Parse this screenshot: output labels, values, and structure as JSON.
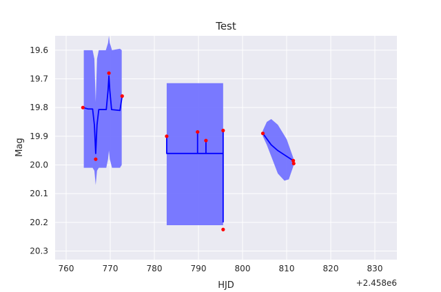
{
  "chart_data": {
    "type": "line",
    "title": "Test",
    "xlabel": "HJD",
    "ylabel": "Mag",
    "x_offset_label": "+2.458e6",
    "xlim": [
      757.5,
      835
    ],
    "ylim": [
      20.33,
      19.55
    ],
    "y_inverted": true,
    "grid": true,
    "xticks": [
      760,
      770,
      780,
      790,
      800,
      810,
      820,
      830
    ],
    "yticks": [
      19.6,
      19.7,
      19.8,
      19.9,
      20.0,
      20.1,
      20.2,
      20.3
    ],
    "ytick_labels": [
      "19.6",
      "19.7",
      "19.8",
      "19.9",
      "20.0",
      "20.1",
      "20.2",
      "20.3"
    ],
    "colors": {
      "background": "#eaeaf2",
      "grid": "#ffffff",
      "model_line": "#0000ff",
      "band": "#7373ff",
      "observations": "#ff0000",
      "text": "#262626"
    },
    "observations": [
      {
        "x": 763.8,
        "y": 19.8
      },
      {
        "x": 766.7,
        "y": 19.98
      },
      {
        "x": 769.7,
        "y": 19.68
      },
      {
        "x": 772.7,
        "y": 19.76
      },
      {
        "x": 782.8,
        "y": 19.9
      },
      {
        "x": 789.8,
        "y": 19.885
      },
      {
        "x": 791.7,
        "y": 19.915
      },
      {
        "x": 795.6,
        "y": 19.88
      },
      {
        "x": 795.6,
        "y": 20.225
      },
      {
        "x": 804.6,
        "y": 19.89
      },
      {
        "x": 811.5,
        "y": 19.985
      },
      {
        "x": 811.6,
        "y": 19.995
      }
    ],
    "segments": [
      {
        "line": [
          [
            763.8,
            19.8
          ],
          [
            765.0,
            19.805
          ],
          [
            766.0,
            19.805
          ],
          [
            766.4,
            19.86
          ],
          [
            766.7,
            19.96
          ],
          [
            767.0,
            19.86
          ],
          [
            767.4,
            19.807
          ],
          [
            769.1,
            19.807
          ],
          [
            769.5,
            19.74
          ],
          [
            769.7,
            19.69
          ],
          [
            769.9,
            19.74
          ],
          [
            770.3,
            19.807
          ],
          [
            772.2,
            19.81
          ],
          [
            772.7,
            19.76
          ]
        ],
        "band_upper": [
          [
            764.0,
            19.6
          ],
          [
            766.0,
            19.6
          ],
          [
            766.4,
            19.63
          ],
          [
            766.7,
            19.78
          ],
          [
            767.0,
            19.63
          ],
          [
            767.4,
            19.6
          ],
          [
            769.0,
            19.6
          ],
          [
            769.5,
            19.575
          ],
          [
            769.7,
            19.55
          ],
          [
            769.9,
            19.575
          ],
          [
            770.4,
            19.6
          ],
          [
            772.2,
            19.595
          ],
          [
            772.6,
            19.6
          ]
        ],
        "band_lower": [
          [
            764.0,
            20.01
          ],
          [
            766.0,
            20.01
          ],
          [
            766.4,
            20.02
          ],
          [
            766.7,
            20.07
          ],
          [
            767.0,
            20.02
          ],
          [
            767.4,
            20.01
          ],
          [
            769.1,
            20.01
          ],
          [
            769.5,
            19.98
          ],
          [
            769.7,
            19.95
          ],
          [
            769.9,
            19.98
          ],
          [
            770.4,
            20.01
          ],
          [
            772.2,
            20.01
          ],
          [
            772.6,
            20.0
          ]
        ]
      },
      {
        "line": [
          [
            782.8,
            19.9
          ],
          [
            782.8,
            19.96
          ],
          [
            789.8,
            19.96
          ],
          [
            789.8,
            19.885
          ],
          [
            789.8,
            19.96
          ],
          [
            791.7,
            19.96
          ],
          [
            791.7,
            19.915
          ],
          [
            791.7,
            19.96
          ],
          [
            795.6,
            19.96
          ],
          [
            795.6,
            19.88
          ],
          [
            795.6,
            20.2
          ]
        ],
        "band_upper": [
          [
            782.8,
            19.715
          ],
          [
            795.6,
            19.715
          ]
        ],
        "band_lower": [
          [
            782.8,
            20.21
          ],
          [
            795.6,
            20.21
          ]
        ]
      },
      {
        "line": [
          [
            804.6,
            19.89
          ],
          [
            806.5,
            19.93
          ],
          [
            808.0,
            19.95
          ],
          [
            810.0,
            19.97
          ],
          [
            811.5,
            19.985
          ],
          [
            811.6,
            19.995
          ]
        ],
        "band_upper": [
          [
            804.6,
            19.88
          ],
          [
            805.5,
            19.85
          ],
          [
            806.5,
            19.84
          ],
          [
            808.0,
            19.86
          ],
          [
            810.0,
            19.91
          ],
          [
            811.5,
            19.975
          ],
          [
            811.6,
            19.99
          ]
        ],
        "band_lower": [
          [
            804.6,
            19.9
          ],
          [
            805.5,
            19.93
          ],
          [
            806.5,
            19.97
          ],
          [
            808.0,
            20.03
          ],
          [
            809.5,
            20.055
          ],
          [
            810.5,
            20.05
          ],
          [
            811.5,
            20.005
          ],
          [
            811.6,
            20.0
          ]
        ]
      }
    ]
  }
}
